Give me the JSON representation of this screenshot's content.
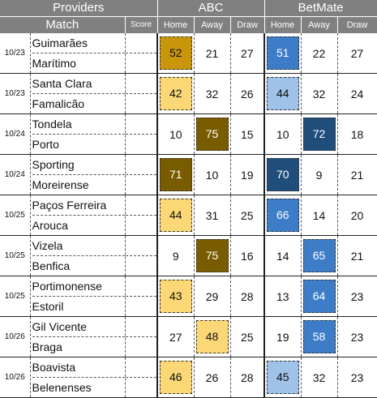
{
  "header": {
    "providers_label": "Providers",
    "match_label": "Match",
    "score_label": "Score",
    "providers": [
      {
        "name": "ABC",
        "cols": [
          "Home",
          "Away",
          "Draw"
        ]
      },
      {
        "name": "BetMate",
        "cols": [
          "Home",
          "Away",
          "Draw"
        ]
      }
    ]
  },
  "colors": {
    "abc_light": "#fbd775",
    "abc_mid": "#c9950a",
    "abc_dark": "#7a5c00",
    "bm_light": "#9fc2e8",
    "bm_mid": "#3d7dc8",
    "bm_dark": "#1f4e7a"
  },
  "matches": [
    {
      "date": "10/23",
      "home": "Guimarães",
      "away": "Marítimo",
      "abc": [
        52,
        21,
        27
      ],
      "abc_hl": [
        0,
        "mid"
      ],
      "bm": [
        51,
        22,
        27
      ],
      "bm_hl": [
        0,
        "mid"
      ]
    },
    {
      "date": "10/23",
      "home": "Santa Clara",
      "away": "Famalicão",
      "abc": [
        42,
        32,
        26
      ],
      "abc_hl": [
        0,
        "light"
      ],
      "bm": [
        44,
        32,
        24
      ],
      "bm_hl": [
        0,
        "light"
      ]
    },
    {
      "date": "10/24",
      "home": "Tondela",
      "away": "Porto",
      "abc": [
        10,
        75,
        15
      ],
      "abc_hl": [
        1,
        "dark"
      ],
      "bm": [
        10,
        72,
        18
      ],
      "bm_hl": [
        1,
        "dark"
      ]
    },
    {
      "date": "10/24",
      "home": "Sporting",
      "away": "Moreirense",
      "abc": [
        71,
        10,
        19
      ],
      "abc_hl": [
        0,
        "dark"
      ],
      "bm": [
        70,
        9,
        21
      ],
      "bm_hl": [
        0,
        "dark"
      ]
    },
    {
      "date": "10/25",
      "home": "Paços Ferreira",
      "away": "Arouca",
      "abc": [
        44,
        31,
        25
      ],
      "abc_hl": [
        0,
        "light"
      ],
      "bm": [
        66,
        14,
        20
      ],
      "bm_hl": [
        0,
        "mid"
      ]
    },
    {
      "date": "10/25",
      "home": "Vizela",
      "away": "Benfica",
      "abc": [
        9,
        75,
        16
      ],
      "abc_hl": [
        1,
        "dark"
      ],
      "bm": [
        14,
        65,
        21
      ],
      "bm_hl": [
        1,
        "mid"
      ]
    },
    {
      "date": "10/25",
      "home": "Portimonense",
      "away": "Estoril",
      "abc": [
        43,
        29,
        28
      ],
      "abc_hl": [
        0,
        "light"
      ],
      "bm": [
        13,
        64,
        23
      ],
      "bm_hl": [
        1,
        "mid"
      ]
    },
    {
      "date": "10/26",
      "home": "Gil Vicente",
      "away": "Braga",
      "abc": [
        27,
        48,
        25
      ],
      "abc_hl": [
        1,
        "light"
      ],
      "bm": [
        19,
        58,
        23
      ],
      "bm_hl": [
        1,
        "mid"
      ]
    },
    {
      "date": "10/26",
      "home": "Boavista",
      "away": "Belenenses",
      "abc": [
        46,
        26,
        28
      ],
      "abc_hl": [
        0,
        "light"
      ],
      "bm": [
        45,
        32,
        23
      ],
      "bm_hl": [
        0,
        "light"
      ]
    }
  ]
}
